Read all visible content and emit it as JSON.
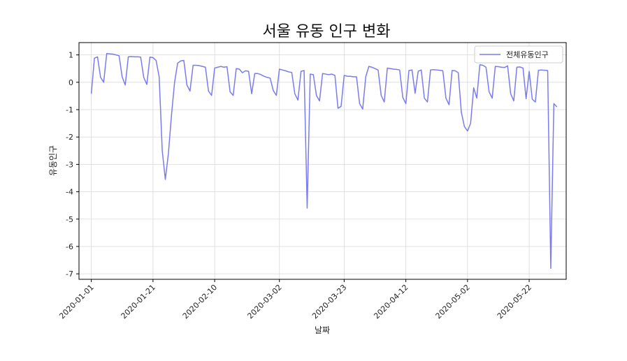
{
  "chart_data": {
    "type": "line",
    "title": "서울 유동 인구 변화",
    "xlabel": "날짜",
    "ylabel": "유동인구",
    "ylim": [
      -7.2,
      1.45
    ],
    "xlim": [
      "2019-12-28",
      "2020-06-03"
    ],
    "grid": true,
    "legend_position": "top-right",
    "yticks": [
      1,
      0,
      -1,
      -2,
      -3,
      -4,
      -5,
      -6,
      -7
    ],
    "xticks": [
      "2020-01-01",
      "2020-01-21",
      "2020-02-10",
      "2020-03-02",
      "2020-03-23",
      "2020-04-12",
      "2020-05-02",
      "2020-05-22"
    ],
    "series": [
      {
        "name": "전체유동인구",
        "color": "#7b7bf0",
        "points": [
          [
            "2020-01-01",
            -0.42
          ],
          [
            "2020-01-02",
            0.88
          ],
          [
            "2020-01-03",
            0.93
          ],
          [
            "2020-01-04",
            0.18
          ],
          [
            "2020-01-05",
            0.0
          ],
          [
            "2020-01-06",
            1.05
          ],
          [
            "2020-01-07",
            1.04
          ],
          [
            "2020-01-08",
            1.03
          ],
          [
            "2020-01-09",
            1.0
          ],
          [
            "2020-01-10",
            0.97
          ],
          [
            "2020-01-11",
            0.2
          ],
          [
            "2020-01-12",
            -0.1
          ],
          [
            "2020-01-13",
            0.93
          ],
          [
            "2020-01-14",
            0.94
          ],
          [
            "2020-01-15",
            0.93
          ],
          [
            "2020-01-16",
            0.93
          ],
          [
            "2020-01-17",
            0.92
          ],
          [
            "2020-01-18",
            0.18
          ],
          [
            "2020-01-19",
            -0.08
          ],
          [
            "2020-01-20",
            0.92
          ],
          [
            "2020-01-21",
            0.9
          ],
          [
            "2020-01-22",
            0.8
          ],
          [
            "2020-01-23",
            0.2
          ],
          [
            "2020-01-24",
            -2.5
          ],
          [
            "2020-01-25",
            -3.55
          ],
          [
            "2020-01-26",
            -2.6
          ],
          [
            "2020-01-27",
            -1.2
          ],
          [
            "2020-01-28",
            0.0
          ],
          [
            "2020-01-29",
            0.7
          ],
          [
            "2020-01-30",
            0.78
          ],
          [
            "2020-01-31",
            0.8
          ],
          [
            "2020-02-01",
            -0.1
          ],
          [
            "2020-02-02",
            -0.32
          ],
          [
            "2020-02-03",
            0.62
          ],
          [
            "2020-02-04",
            0.62
          ],
          [
            "2020-02-05",
            0.61
          ],
          [
            "2020-02-06",
            0.58
          ],
          [
            "2020-02-07",
            0.55
          ],
          [
            "2020-02-08",
            -0.32
          ],
          [
            "2020-02-09",
            -0.48
          ],
          [
            "2020-02-10",
            0.52
          ],
          [
            "2020-02-11",
            0.55
          ],
          [
            "2020-02-12",
            0.58
          ],
          [
            "2020-02-13",
            0.55
          ],
          [
            "2020-02-14",
            0.57
          ],
          [
            "2020-02-15",
            -0.35
          ],
          [
            "2020-02-16",
            -0.48
          ],
          [
            "2020-02-17",
            0.5
          ],
          [
            "2020-02-18",
            0.48
          ],
          [
            "2020-02-19",
            0.35
          ],
          [
            "2020-02-20",
            0.42
          ],
          [
            "2020-02-21",
            0.4
          ],
          [
            "2020-02-22",
            -0.42
          ],
          [
            "2020-02-23",
            0.32
          ],
          [
            "2020-02-24",
            0.32
          ],
          [
            "2020-02-25",
            0.28
          ],
          [
            "2020-02-26",
            0.22
          ],
          [
            "2020-02-27",
            0.18
          ],
          [
            "2020-02-28",
            0.15
          ],
          [
            "2020-02-29",
            -0.3
          ],
          [
            "2020-03-01",
            -0.48
          ],
          [
            "2020-03-02",
            0.48
          ],
          [
            "2020-03-03",
            0.45
          ],
          [
            "2020-03-04",
            0.42
          ],
          [
            "2020-03-05",
            0.38
          ],
          [
            "2020-03-06",
            0.36
          ],
          [
            "2020-03-07",
            -0.42
          ],
          [
            "2020-03-08",
            -0.65
          ],
          [
            "2020-03-09",
            0.4
          ],
          [
            "2020-03-10",
            0.43
          ],
          [
            "2020-03-11",
            -4.6
          ],
          [
            "2020-03-12",
            0.3
          ],
          [
            "2020-03-13",
            0.28
          ],
          [
            "2020-03-14",
            -0.48
          ],
          [
            "2020-03-15",
            -0.68
          ],
          [
            "2020-03-16",
            0.32
          ],
          [
            "2020-03-17",
            0.3
          ],
          [
            "2020-03-18",
            0.28
          ],
          [
            "2020-03-19",
            0.3
          ],
          [
            "2020-03-20",
            0.25
          ],
          [
            "2020-03-21",
            -0.95
          ],
          [
            "2020-03-22",
            -0.88
          ],
          [
            "2020-03-23",
            0.25
          ],
          [
            "2020-03-24",
            0.22
          ],
          [
            "2020-03-25",
            0.22
          ],
          [
            "2020-03-26",
            0.2
          ],
          [
            "2020-03-27",
            0.2
          ],
          [
            "2020-03-28",
            -0.78
          ],
          [
            "2020-03-29",
            -0.98
          ],
          [
            "2020-03-30",
            0.2
          ],
          [
            "2020-03-31",
            0.58
          ],
          [
            "2020-04-01",
            0.55
          ],
          [
            "2020-04-02",
            0.5
          ],
          [
            "2020-04-03",
            0.45
          ],
          [
            "2020-04-04",
            -0.48
          ],
          [
            "2020-04-05",
            -0.72
          ],
          [
            "2020-04-06",
            0.52
          ],
          [
            "2020-04-07",
            0.5
          ],
          [
            "2020-04-08",
            0.48
          ],
          [
            "2020-04-09",
            0.47
          ],
          [
            "2020-04-10",
            0.45
          ],
          [
            "2020-04-11",
            -0.55
          ],
          [
            "2020-04-12",
            -0.78
          ],
          [
            "2020-04-13",
            0.43
          ],
          [
            "2020-04-14",
            0.45
          ],
          [
            "2020-04-15",
            -0.4
          ],
          [
            "2020-04-16",
            0.4
          ],
          [
            "2020-04-17",
            0.45
          ],
          [
            "2020-04-18",
            -0.58
          ],
          [
            "2020-04-19",
            -0.72
          ],
          [
            "2020-04-20",
            0.45
          ],
          [
            "2020-04-21",
            0.46
          ],
          [
            "2020-04-22",
            0.45
          ],
          [
            "2020-04-23",
            0.44
          ],
          [
            "2020-04-24",
            0.42
          ],
          [
            "2020-04-25",
            -0.58
          ],
          [
            "2020-04-26",
            -0.82
          ],
          [
            "2020-04-27",
            0.43
          ],
          [
            "2020-04-28",
            0.42
          ],
          [
            "2020-04-29",
            0.35
          ],
          [
            "2020-04-30",
            -1.1
          ],
          [
            "2020-05-01",
            -1.62
          ],
          [
            "2020-05-02",
            -1.78
          ],
          [
            "2020-05-03",
            -1.5
          ],
          [
            "2020-05-04",
            -0.2
          ],
          [
            "2020-05-05",
            -0.58
          ],
          [
            "2020-05-06",
            0.64
          ],
          [
            "2020-05-07",
            0.62
          ],
          [
            "2020-05-08",
            0.55
          ],
          [
            "2020-05-09",
            -0.35
          ],
          [
            "2020-05-10",
            -0.58
          ],
          [
            "2020-05-11",
            0.58
          ],
          [
            "2020-05-12",
            0.57
          ],
          [
            "2020-05-13",
            0.55
          ],
          [
            "2020-05-14",
            0.54
          ],
          [
            "2020-05-15",
            0.6
          ],
          [
            "2020-05-16",
            -0.42
          ],
          [
            "2020-05-17",
            -0.68
          ],
          [
            "2020-05-18",
            0.55
          ],
          [
            "2020-05-19",
            0.56
          ],
          [
            "2020-05-20",
            0.52
          ],
          [
            "2020-05-21",
            -0.6
          ],
          [
            "2020-05-22",
            0.4
          ],
          [
            "2020-05-23",
            -0.62
          ],
          [
            "2020-05-24",
            -0.72
          ],
          [
            "2020-05-25",
            0.44
          ],
          [
            "2020-05-26",
            0.45
          ],
          [
            "2020-05-27",
            0.44
          ],
          [
            "2020-05-28",
            0.43
          ],
          [
            "2020-05-29",
            -6.8
          ],
          [
            "2020-05-30",
            -0.78
          ],
          [
            "2020-05-31",
            -0.9
          ]
        ]
      }
    ]
  }
}
